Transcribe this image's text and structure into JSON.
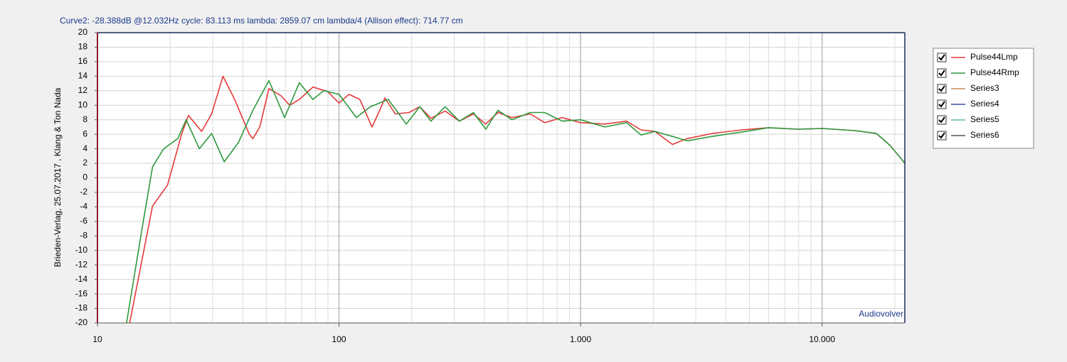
{
  "chart_data": {
    "type": "line",
    "annotation": "Curve2:  -28.388dB @12.032Hz   cycle: 83.113 ms   lambda: 2859.07 cm   lambda/4 (Allison effect): 714.77 cm",
    "y_label": "Brieden-Verlag, 25.07.2017 , Klang & Ton Nada",
    "watermark": "Audiovolver",
    "log_x": true,
    "grid": true,
    "legend": "right",
    "xlim": [
      10,
      22000
    ],
    "xticks": [
      10,
      100,
      {
        "value": 1000,
        "label": "1.000"
      },
      {
        "value": 10000,
        "label": "10.000"
      }
    ],
    "xminor": [
      20,
      30,
      40,
      50,
      60,
      70,
      80,
      90,
      200,
      300,
      400,
      500,
      600,
      700,
      800,
      900,
      2000,
      3000,
      4000,
      5000,
      6000,
      7000,
      8000,
      9000,
      20000
    ],
    "ylim": [
      -20,
      20
    ],
    "yticks": [
      -20,
      -18,
      -16,
      -14,
      -12,
      -10,
      -8,
      -6,
      -4,
      -2,
      0,
      2,
      4,
      6,
      8,
      10,
      12,
      14,
      16,
      18,
      20
    ],
    "series": [
      {
        "name": "Pulse44Lmp",
        "color": "#e53a3a",
        "x": [
          13.6,
          16.9,
          19.5,
          22.3,
          23.8,
          27,
          29.7,
          33.1,
          37,
          42.5,
          44,
          47,
          51.3,
          57.6,
          62.5,
          68.5,
          78,
          89.6,
          100,
          110,
          122,
          137,
          146,
          155,
          171,
          195,
          216,
          240,
          275,
          315,
          360,
          405,
          455,
          520,
          620,
          710,
          840,
          1000,
          1260,
          1550,
          1780,
          2030,
          2400,
          2760,
          3500,
          4640,
          6000,
          7950,
          10000,
          13700,
          16800,
          19200,
          22000
        ],
        "values": [
          -20,
          -3.9,
          -1,
          6,
          8.6,
          6.4,
          8.8,
          14,
          10.8,
          6,
          5.4,
          7,
          12.3,
          11.3,
          10,
          10.8,
          12.5,
          11.9,
          10.3,
          11.5,
          10.8,
          7,
          9,
          11,
          8.8,
          9,
          9.8,
          8.2,
          9.2,
          7.8,
          8.8,
          7.4,
          9,
          8.3,
          8.8,
          7.6,
          8.3,
          7.6,
          7.4,
          7.8,
          6.6,
          6.4,
          4.6,
          5.4,
          6.1,
          6.6,
          6.9,
          6.7,
          6.8,
          6.5,
          6.1,
          4.4,
          2
        ]
      },
      {
        "name": "Pulse44Rmp",
        "color": "#2e9a3e",
        "x": [
          13.2,
          15.3,
          16.9,
          18.8,
          21.5,
          23.3,
          26.4,
          29.7,
          33.5,
          38.4,
          44,
          51.3,
          59.5,
          68.5,
          78,
          86.5,
          100,
          118,
          135,
          160,
          190,
          216,
          240,
          275,
          315,
          360,
          405,
          455,
          520,
          620,
          710,
          840,
          1000,
          1260,
          1550,
          1780,
          2030,
          2400,
          2760,
          3500,
          4640,
          6000,
          7950,
          10000,
          13700,
          16800,
          19200,
          22000
        ],
        "values": [
          -20,
          -7,
          1.5,
          4,
          5.4,
          8,
          4,
          6.1,
          2.2,
          4.9,
          9.3,
          13.4,
          8.3,
          13.1,
          10.8,
          12,
          11.5,
          8.3,
          9.8,
          10.8,
          7.4,
          9.8,
          7.8,
          9.8,
          7.8,
          9,
          6.7,
          9.3,
          8,
          9,
          9,
          7.8,
          8,
          7,
          7.6,
          5.9,
          6.4,
          5.7,
          5.1,
          5.7,
          6.3,
          6.9,
          6.7,
          6.8,
          6.5,
          6.1,
          4.4,
          2
        ]
      },
      {
        "name": "Series3",
        "color": "#c98a5c"
      },
      {
        "name": "Series4",
        "color": "#3a4ea8"
      },
      {
        "name": "Series5",
        "color": "#5fb89a"
      },
      {
        "name": "Series6",
        "color": "#555555"
      }
    ]
  }
}
